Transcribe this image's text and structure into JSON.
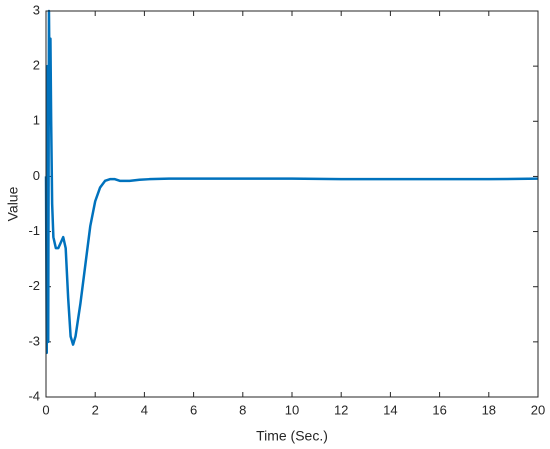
{
  "chart_data": {
    "type": "line",
    "xlabel": "Time (Sec.)",
    "ylabel": "Value",
    "x": [
      0,
      0.03,
      0.06,
      0.09,
      0.12,
      0.15,
      0.18,
      0.21,
      0.25,
      0.3,
      0.4,
      0.5,
      0.6,
      0.7,
      0.8,
      0.9,
      1.0,
      1.1,
      1.2,
      1.4,
      1.6,
      1.8,
      2.0,
      2.2,
      2.4,
      2.6,
      2.8,
      3.0,
      3.4,
      3.8,
      4.2,
      5,
      6,
      8,
      10,
      12,
      14,
      16,
      18,
      20
    ],
    "series": [
      {
        "color": "#0072bd",
        "values": [
          0,
          -3.2,
          2.0,
          -3.0,
          3.0,
          1.5,
          2.5,
          1.0,
          -0.5,
          -1.1,
          -1.3,
          -1.3,
          -1.2,
          -1.1,
          -1.3,
          -2.2,
          -2.9,
          -3.05,
          -2.9,
          -2.3,
          -1.6,
          -0.9,
          -0.45,
          -0.2,
          -0.08,
          -0.05,
          -0.05,
          -0.08,
          -0.08,
          -0.06,
          -0.05,
          -0.04,
          -0.04,
          -0.04,
          -0.04,
          -0.05,
          -0.05,
          -0.05,
          -0.05,
          -0.04
        ]
      }
    ],
    "xlim": [
      0,
      20
    ],
    "xticks": [
      0,
      2,
      4,
      6,
      8,
      10,
      12,
      14,
      16,
      18,
      20
    ],
    "ylim": [
      -4,
      3
    ],
    "yticks": [
      -4,
      -3,
      -2,
      -1,
      0,
      1,
      2,
      3
    ],
    "grid": false
  }
}
